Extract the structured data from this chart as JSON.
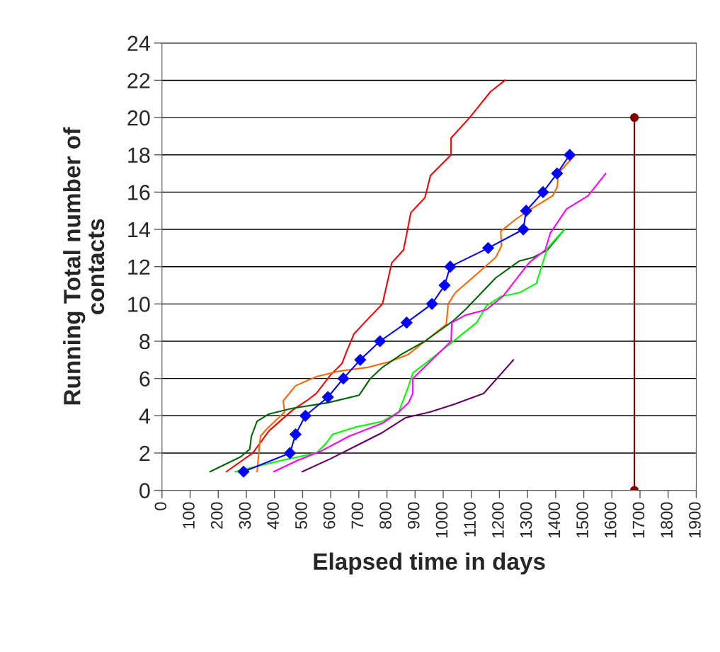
{
  "chart_data": {
    "type": "line",
    "xlabel": "Elapsed time in days",
    "ylabel": "Running Total number of\ncontacts",
    "xlim": [
      0,
      1900
    ],
    "xticks": [
      0,
      100,
      200,
      300,
      400,
      500,
      600,
      700,
      800,
      900,
      1000,
      1100,
      1200,
      1300,
      1400,
      1500,
      1600,
      1700,
      1800,
      1900
    ],
    "ylim": [
      0,
      24
    ],
    "yticks": [
      0,
      2,
      4,
      6,
      8,
      10,
      12,
      14,
      16,
      18,
      20,
      22,
      24
    ],
    "grid": "y",
    "legend": false,
    "marker": "none",
    "line_style": "solid",
    "series": [
      {
        "color": "#ff0000",
        "x": [
          229,
          323,
          381,
          464,
          514,
          549,
          600,
          640,
          658,
          683,
          733,
          784,
          817,
          859,
          885,
          935,
          955,
          1028,
          1028,
          1094,
          1169,
          1220
        ],
        "values": [
          1.0,
          2.0,
          3.2,
          4.3,
          4.8,
          5.2,
          6.2,
          6.8,
          7.5,
          8.4,
          9.2,
          10.0,
          12.2,
          12.9,
          14.9,
          15.7,
          16.9,
          18.0,
          18.9,
          20.0,
          21.4,
          22.0
        ]
      },
      {
        "color": "#ff6600",
        "x": [
          338,
          350,
          373,
          436,
          431,
          474,
          549,
          633,
          733,
          809,
          877,
          935,
          1011,
          1018,
          1043,
          1119,
          1187,
          1207,
          1205,
          1263,
          1313,
          1389,
          1406,
          1409,
          1469
        ],
        "values": [
          1.0,
          2.9,
          3.3,
          4.2,
          4.8,
          5.6,
          6.1,
          6.4,
          6.6,
          6.9,
          7.3,
          8.0,
          8.9,
          10.0,
          10.6,
          11.6,
          12.5,
          13.1,
          13.9,
          14.6,
          15.1,
          15.8,
          16.3,
          17.0,
          18.0
        ]
      },
      {
        "color": "#006600",
        "x": [
          171,
          280,
          312,
          318,
          338,
          381,
          464,
          590,
          701,
          741,
          784,
          852,
          935,
          1036,
          1079,
          1187,
          1270,
          1321,
          1371,
          1431
        ],
        "values": [
          1.0,
          1.8,
          2.2,
          2.9,
          3.7,
          4.1,
          4.4,
          4.7,
          5.1,
          6.0,
          6.6,
          7.3,
          8.0,
          9.1,
          9.7,
          11.4,
          12.3,
          12.5,
          12.9,
          14.0
        ]
      },
      {
        "color": "#00ff00",
        "x": [
          260,
          423,
          549,
          582,
          607,
          691,
          784,
          842,
          877,
          892,
          953,
          1028,
          1119,
          1154,
          1205,
          1270,
          1331,
          1356,
          1371,
          1431
        ],
        "values": [
          1.0,
          1.6,
          2.0,
          2.5,
          3.0,
          3.4,
          3.7,
          4.2,
          5.6,
          6.3,
          7.0,
          7.9,
          9.0,
          9.9,
          10.4,
          10.6,
          11.1,
          12.3,
          13.0,
          14.0
        ]
      },
      {
        "color": "#ff00ff",
        "x": [
          398,
          481,
          565,
          665,
          784,
          842,
          877,
          892,
          892,
          953,
          1028,
          1031,
          1079,
          1154,
          1212,
          1305,
          1363,
          1381,
          1421,
          1439,
          1515,
          1578
        ],
        "values": [
          1.0,
          1.6,
          2.1,
          2.9,
          3.6,
          4.2,
          4.7,
          5.2,
          6.0,
          6.9,
          8.0,
          9.0,
          9.4,
          9.7,
          10.4,
          12.2,
          12.9,
          13.8,
          14.7,
          15.1,
          15.8,
          17.0
        ]
      },
      {
        "color": "#660066",
        "x": [
          499,
          600,
          784,
          867,
          953,
          1036,
          1144,
          1250
        ],
        "values": [
          1.0,
          1.7,
          3.1,
          3.9,
          4.2,
          4.6,
          5.2,
          7.0
        ]
      },
      {
        "color": "#0000ff",
        "marker": "diamond",
        "x": [
          290,
          455,
          475,
          510,
          590,
          645,
          705,
          775,
          870,
          960,
          1005,
          1025,
          1160,
          1285,
          1295,
          1355,
          1405,
          1450
        ],
        "values": [
          1,
          2,
          3,
          4,
          5,
          6,
          7,
          8,
          9,
          10,
          11,
          12,
          13,
          14,
          15,
          16,
          17,
          18
        ]
      },
      {
        "color": "#800000",
        "marker": "circle",
        "x": [
          1680,
          1680
        ],
        "values": [
          0,
          20
        ]
      }
    ]
  }
}
